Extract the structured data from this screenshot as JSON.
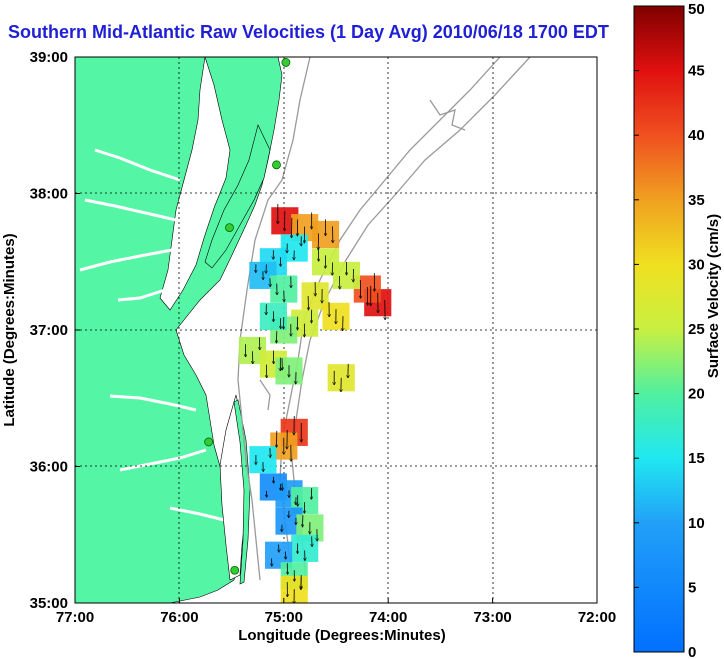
{
  "title": "Southern Mid-Atlantic Raw Velocities (1 Day Avg) 2010/06/18 1700 EDT",
  "colors": {
    "land": "#55f5a6",
    "coast_gray": "#9a9a9a",
    "station": "#33cc33",
    "title": "#1f1fd6"
  },
  "chart_data": {
    "type": "heatmap",
    "xlabel": "Longitude (Degrees:Minutes)",
    "ylabel": "Latitude (Degrees:Minutes)",
    "colorbar_label": "Surface Velocity (cm/s)",
    "x_range": [
      -77,
      -72
    ],
    "y_range": [
      35,
      39
    ],
    "x_ticks": [
      {
        "value": -77,
        "label": "77:00"
      },
      {
        "value": -76,
        "label": "76:00"
      },
      {
        "value": -75,
        "label": "75:00"
      },
      {
        "value": -74,
        "label": "74:00"
      },
      {
        "value": -73,
        "label": "73:00"
      },
      {
        "value": -72,
        "label": "72:00"
      }
    ],
    "y_ticks": [
      {
        "value": 35,
        "label": "35:00"
      },
      {
        "value": 36,
        "label": "36:00"
      },
      {
        "value": 37,
        "label": "37:00"
      },
      {
        "value": 38,
        "label": "38:00"
      },
      {
        "value": 39,
        "label": "39:00"
      }
    ],
    "colorbar_range": [
      0,
      50
    ],
    "colorbar_ticks": [
      "0",
      "5",
      "10",
      "15",
      "20",
      "25",
      "30",
      "35",
      "40",
      "45",
      "50"
    ],
    "grid": true,
    "stations": [
      {
        "lon": -74.98,
        "lat": 38.96
      },
      {
        "lon": -75.07,
        "lat": 38.21
      },
      {
        "lon": -75.52,
        "lat": 37.75
      },
      {
        "lon": -75.72,
        "lat": 36.18
      },
      {
        "lon": -75.47,
        "lat": 35.24
      }
    ],
    "velocity_cells": [
      {
        "lon": -74.99,
        "lat": 37.8,
        "speed": 45
      },
      {
        "lon": -74.8,
        "lat": 37.75,
        "speed": 35
      },
      {
        "lon": -74.6,
        "lat": 37.7,
        "speed": 35
      },
      {
        "lon": -74.1,
        "lat": 37.2,
        "speed": 45
      },
      {
        "lon": -74.2,
        "lat": 37.3,
        "speed": 40
      },
      {
        "lon": -74.4,
        "lat": 37.4,
        "speed": 25
      },
      {
        "lon": -74.6,
        "lat": 37.5,
        "speed": 25
      },
      {
        "lon": -74.9,
        "lat": 37.6,
        "speed": 15
      },
      {
        "lon": -75.1,
        "lat": 37.5,
        "speed": 14
      },
      {
        "lon": -75.2,
        "lat": 37.4,
        "speed": 12
      },
      {
        "lon": -75.0,
        "lat": 37.3,
        "speed": 20
      },
      {
        "lon": -74.7,
        "lat": 37.25,
        "speed": 28
      },
      {
        "lon": -74.5,
        "lat": 37.1,
        "speed": 30
      },
      {
        "lon": -74.8,
        "lat": 37.05,
        "speed": 26
      },
      {
        "lon": -75.0,
        "lat": 37.0,
        "speed": 22
      },
      {
        "lon": -75.1,
        "lat": 37.1,
        "speed": 18
      },
      {
        "lon": -75.3,
        "lat": 36.85,
        "speed": 24
      },
      {
        "lon": -75.1,
        "lat": 36.75,
        "speed": 26
      },
      {
        "lon": -74.95,
        "lat": 36.7,
        "speed": 22
      },
      {
        "lon": -74.45,
        "lat": 36.65,
        "speed": 28
      },
      {
        "lon": -74.9,
        "lat": 36.25,
        "speed": 42
      },
      {
        "lon": -75.0,
        "lat": 36.15,
        "speed": 35
      },
      {
        "lon": -75.2,
        "lat": 36.05,
        "speed": 15
      },
      {
        "lon": -75.1,
        "lat": 35.85,
        "speed": 6
      },
      {
        "lon": -74.95,
        "lat": 35.8,
        "speed": 9
      },
      {
        "lon": -74.8,
        "lat": 35.75,
        "speed": 20
      },
      {
        "lon": -74.95,
        "lat": 35.6,
        "speed": 8
      },
      {
        "lon": -74.75,
        "lat": 35.55,
        "speed": 22
      },
      {
        "lon": -74.8,
        "lat": 35.4,
        "speed": 17
      },
      {
        "lon": -75.05,
        "lat": 35.35,
        "speed": 10
      },
      {
        "lon": -74.9,
        "lat": 35.2,
        "speed": 20
      },
      {
        "lon": -74.9,
        "lat": 35.1,
        "speed": 30
      }
    ]
  }
}
